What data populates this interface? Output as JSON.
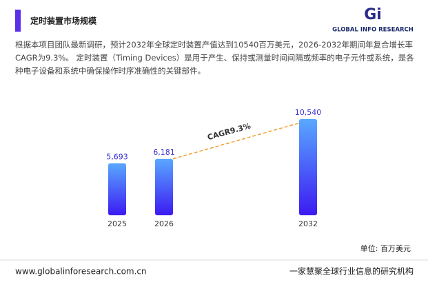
{
  "header": {
    "title": "定时装置市场规模",
    "logo": "GLOBAL INFO RESEARCH"
  },
  "description": "根据本项目团队最新调研，预计2032年全球定时装置产值达到10540百万美元，2026-2032年期间年复合增长率CAGR为9.3%。 定时装置（Timing Devices）是用于产生、保持或测量时间间隔或频率的电子元件或系统，是各种电子设备和系统中确保操作时序准确性的关键部件。",
  "chart_data": {
    "type": "bar",
    "categories": [
      "2025",
      "2026",
      "2032"
    ],
    "values": [
      5693,
      6181,
      10540
    ],
    "value_labels": [
      "5,693",
      "6,181",
      "10,540"
    ],
    "annotation": "CAGR9.3%",
    "unit": "单位: 百万美元",
    "color_top": "#5aa8ff",
    "color_bottom": "#3b1af2",
    "label_color": "#3a2fd0",
    "cagr_color": "#f0a030"
  },
  "footer": {
    "url": "www.globalinforesearch.com.cn",
    "slogan": "一家慧聚全球行业信息的研究机构"
  }
}
